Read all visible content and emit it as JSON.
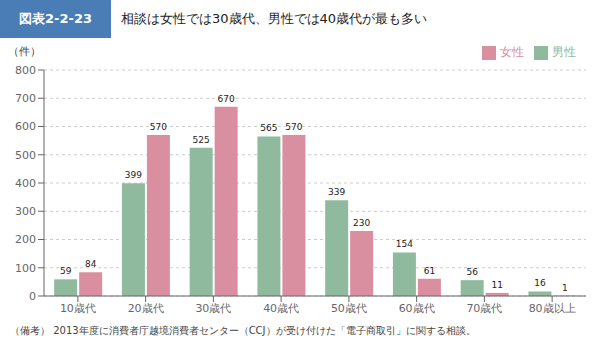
{
  "chart_data": {
    "type": "bar",
    "title": "相談は女性では30歳代、男性では40歳代が最も多い",
    "subtitle": "図表2-2-23",
    "y_label": "（件）",
    "annotations": [
      "（備考） 2013年度に消費者庁越境消費者センター（CCJ）が受け付けた「電子商取引」に関する相談。"
    ],
    "categories": [
      "10歳代",
      "20歳代",
      "30歳代",
      "40歳代",
      "50歳代",
      "60歳代",
      "70歳代",
      "80歳以上"
    ],
    "series": [
      {
        "name": "男性",
        "color": "#8fba9e",
        "values": [
          59,
          399,
          525,
          565,
          339,
          154,
          56,
          16
        ]
      },
      {
        "name": "女性",
        "color": "#d98fa0",
        "values": [
          84,
          570,
          670,
          570,
          230,
          61,
          11,
          1
        ]
      }
    ],
    "ylim": [
      0,
      800
    ],
    "yticks": [
      0,
      100,
      200,
      300,
      400,
      500,
      600,
      700,
      800
    ],
    "grid": true,
    "legend": "upper right",
    "data_labels": true
  }
}
